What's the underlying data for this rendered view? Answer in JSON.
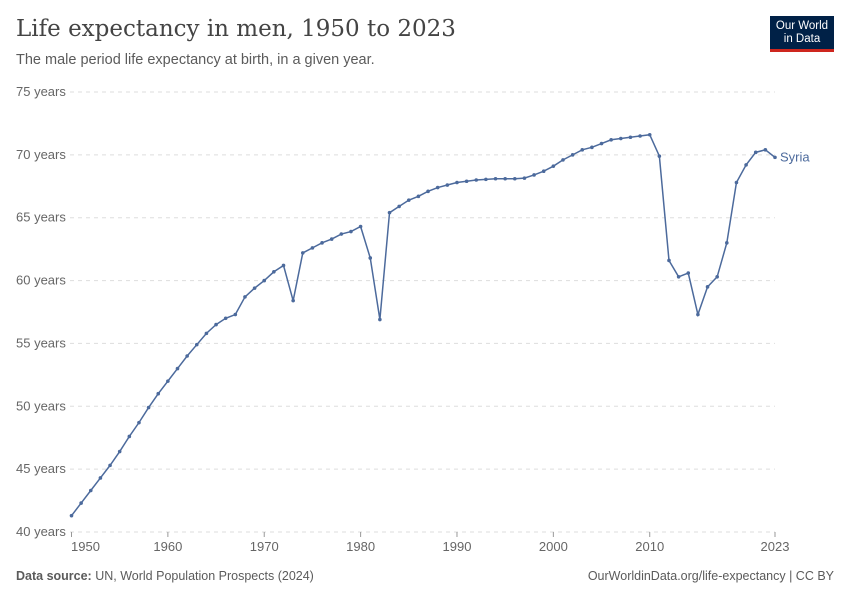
{
  "header": {
    "title": "Life expectancy in men, 1950 to 2023",
    "subtitle": "The male period life expectancy at birth, in a given year.",
    "logo": "Our World in Data"
  },
  "footer": {
    "source_label": "Data source:",
    "source": "UN, World Population Prospects (2024)",
    "link": "OurWorldinData.org/life-expectancy | CC BY"
  },
  "chart_data": {
    "type": "line",
    "title": "Life expectancy in men, 1950 to 2023",
    "ylim": [
      40,
      75
    ],
    "xlim": [
      1950,
      2023
    ],
    "y_ticks": [
      "40 years",
      "45 years",
      "50 years",
      "55 years",
      "60 years",
      "65 years",
      "70 years",
      "75 years"
    ],
    "y_tick_values": [
      40,
      45,
      50,
      55,
      60,
      65,
      70,
      75
    ],
    "x_ticks": [
      "1950",
      "1960",
      "1970",
      "1980",
      "1990",
      "2000",
      "2010",
      "2023"
    ],
    "x_tick_values": [
      1950,
      1960,
      1970,
      1980,
      1990,
      2000,
      2010,
      2023
    ],
    "grid": "horizontal dashed",
    "series": [
      {
        "name": "Syria",
        "color": "#4c6a9c",
        "x": [
          1950,
          1951,
          1952,
          1953,
          1954,
          1955,
          1956,
          1957,
          1958,
          1959,
          1960,
          1961,
          1962,
          1963,
          1964,
          1965,
          1966,
          1967,
          1968,
          1969,
          1970,
          1971,
          1972,
          1973,
          1974,
          1975,
          1976,
          1977,
          1978,
          1979,
          1980,
          1981,
          1982,
          1983,
          1984,
          1985,
          1986,
          1987,
          1988,
          1989,
          1990,
          1991,
          1992,
          1993,
          1994,
          1995,
          1996,
          1997,
          1998,
          1999,
          2000,
          2001,
          2002,
          2003,
          2004,
          2005,
          2006,
          2007,
          2008,
          2009,
          2010,
          2011,
          2012,
          2013,
          2014,
          2015,
          2016,
          2017,
          2018,
          2019,
          2020,
          2021,
          2022,
          2023
        ],
        "values": [
          41.3,
          42.3,
          43.3,
          44.3,
          45.3,
          46.4,
          47.6,
          48.7,
          49.9,
          51.0,
          52.0,
          53.0,
          54.0,
          54.9,
          55.8,
          56.5,
          57.0,
          57.3,
          58.7,
          59.4,
          60.0,
          60.7,
          61.2,
          58.4,
          62.2,
          62.6,
          63.0,
          63.3,
          63.7,
          63.9,
          64.3,
          61.8,
          56.9,
          65.4,
          65.9,
          66.4,
          66.7,
          67.1,
          67.4,
          67.6,
          67.8,
          67.9,
          68.0,
          68.05,
          68.1,
          68.1,
          68.1,
          68.15,
          68.4,
          68.7,
          69.1,
          69.6,
          70.0,
          70.4,
          70.6,
          70.9,
          71.2,
          71.3,
          71.4,
          71.5,
          71.6,
          69.9,
          61.6,
          60.3,
          60.6,
          57.3,
          59.5,
          60.3,
          63.0,
          67.8,
          69.2,
          70.2,
          70.4,
          69.8
        ]
      }
    ]
  }
}
